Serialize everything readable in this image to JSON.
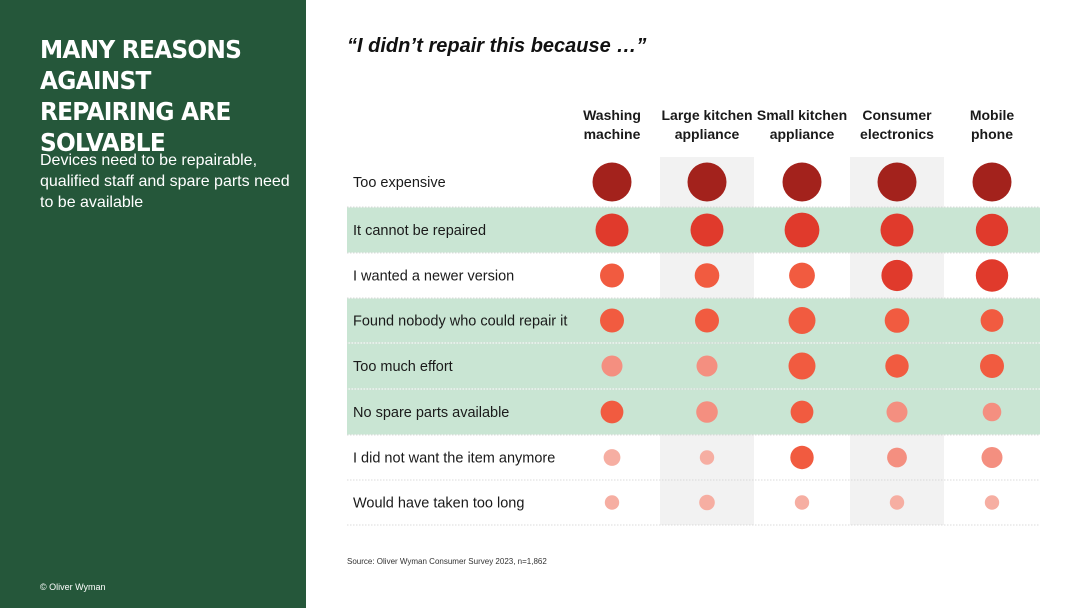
{
  "sidebar": {
    "title": "MANY REASONS AGAINST REPAIRING ARE SOLVABLE",
    "subtitle": "Devices need to be repairable, qualified staff and spare parts need to be available",
    "copyright": "© Oliver Wyman"
  },
  "quote": "“I didn’t repair this because …”",
  "source": "Source: Oliver Wyman Consumer Survey 2023, n=1,862",
  "colors": {
    "sidebar_bg": "#25573a",
    "highlight_row": "#c9e5d3",
    "shaded_column": "#f2f2f2",
    "level_5": "#a3221c",
    "level_4": "#e03a2c",
    "level_3": "#f15b40",
    "level_2": "#f48f80",
    "level_1": "#f6aea2"
  },
  "chart_data": {
    "type": "bubble-matrix",
    "columns": [
      [
        "Washing",
        "machine"
      ],
      [
        "Large kitchen",
        "appliance"
      ],
      [
        "Small kitchen",
        "appliance"
      ],
      [
        "Consumer",
        "electronics"
      ],
      [
        "Mobile",
        "phone"
      ]
    ],
    "shaded_columns": [
      1,
      3
    ],
    "rows": [
      {
        "label": "Too expensive",
        "highlight": false,
        "values": [
          5,
          5,
          5,
          5,
          5
        ]
      },
      {
        "label": "It cannot be repaired",
        "highlight": true,
        "values": [
          4,
          4,
          4.3,
          4,
          3.9
        ]
      },
      {
        "label": "I wanted a newer version",
        "highlight": false,
        "values": [
          2.5,
          2.6,
          2.8,
          3.7,
          3.9
        ]
      },
      {
        "label": "Found nobody who could repair it",
        "highlight": true,
        "values": [
          2.5,
          2.5,
          3,
          2.6,
          2.3
        ]
      },
      {
        "label": "Too much effort",
        "highlight": true,
        "values": [
          2,
          2,
          3,
          2.4,
          2.5
        ]
      },
      {
        "label": "No spare parts available",
        "highlight": true,
        "values": [
          2.3,
          2.1,
          2.3,
          2,
          1.6
        ]
      },
      {
        "label": "I did not want the item anymore",
        "highlight": false,
        "values": [
          1.3,
          0.9,
          2.4,
          1.8,
          2
        ]
      },
      {
        "label": "Would have taken too long",
        "highlight": false,
        "values": [
          0.9,
          1.1,
          0.9,
          0.9,
          0.9
        ]
      }
    ]
  }
}
